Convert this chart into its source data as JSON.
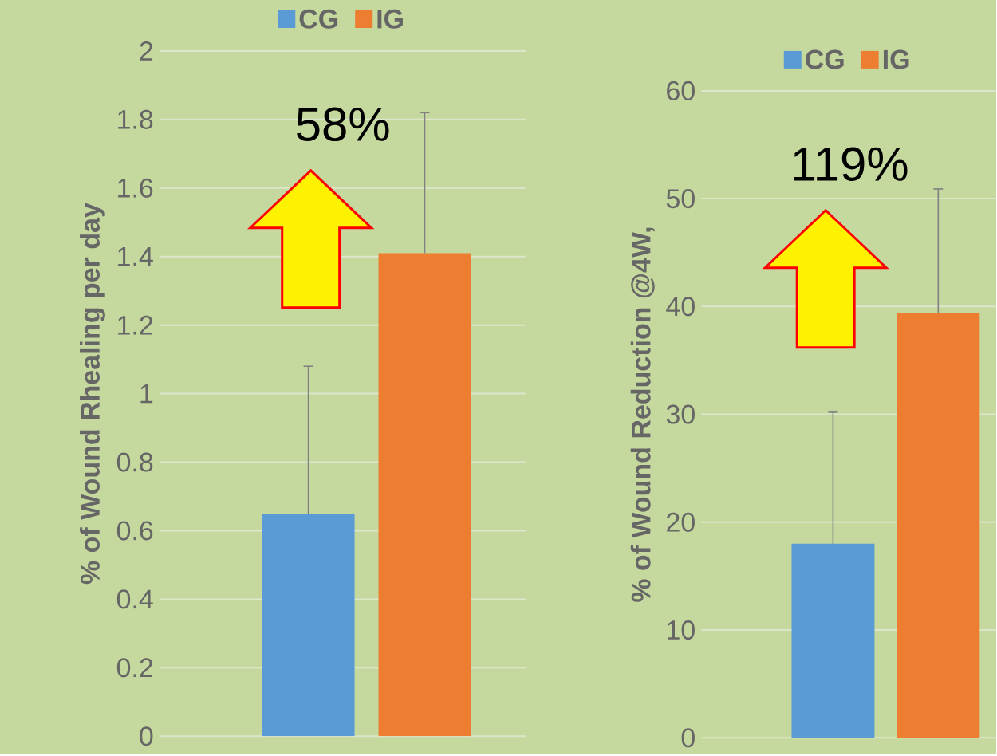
{
  "chart_data": [
    {
      "type": "bar",
      "categories": [
        null
      ],
      "ylabel": "% of Wound Rhealing per day",
      "legend": "top",
      "grid": "y",
      "ylim": [
        0,
        2
      ],
      "yticks": [
        0,
        0.2,
        0.4,
        0.6,
        0.8,
        1,
        1.2,
        1.4,
        1.6,
        1.8,
        2
      ],
      "annotations": [
        "58%"
      ],
      "series": [
        {
          "name": "CG",
          "color": "#5b9bd5",
          "values": [
            0.65
          ],
          "errors": [
            0.43
          ]
        },
        {
          "name": "IG",
          "color": "#ed7d31",
          "values": [
            1.41
          ],
          "errors": [
            0.41
          ]
        }
      ]
    },
    {
      "type": "bar",
      "categories": [
        null
      ],
      "ylabel": "% of Wound Reduction @4W,",
      "legend": "top",
      "grid": "y",
      "ylim": [
        0,
        60
      ],
      "yticks": [
        0,
        10,
        20,
        30,
        40,
        50,
        60
      ],
      "annotations": [
        "119%"
      ],
      "series": [
        {
          "name": "CG",
          "color": "#5b9bd5",
          "values": [
            18
          ],
          "errors": [
            12.2
          ]
        },
        {
          "name": "IG",
          "color": "#ed7d31",
          "values": [
            39.4
          ],
          "errors": [
            11.5
          ]
        }
      ]
    }
  ]
}
